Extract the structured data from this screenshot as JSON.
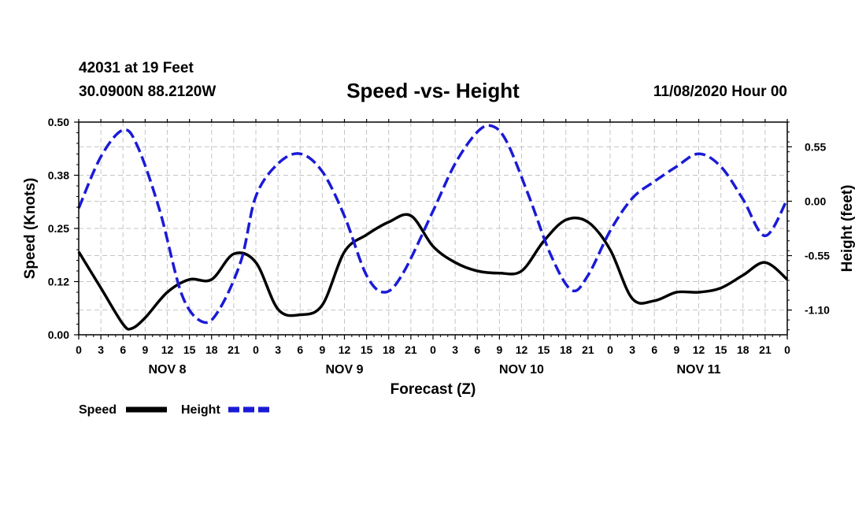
{
  "header": {
    "station": "42031 at 19 Feet",
    "coords": "30.0900N 88.2120W",
    "issued": "11/08/2020 Hour 00"
  },
  "chart_data": {
    "type": "line",
    "title": "Speed -vs- Height",
    "xlabel": "Forecast (Z)",
    "ylabel_left": "Speed (Knots)",
    "ylabel_right": "Height (feet)",
    "x_range_hours": [
      0,
      96
    ],
    "ylim_left": [
      0.0,
      0.5
    ],
    "ylim_right": [
      -1.35,
      0.8
    ],
    "left_ticks": [
      "0.50",
      "0.38",
      "0.25",
      "0.12",
      "0.00"
    ],
    "left_tick_values": [
      0.5,
      0.375,
      0.25,
      0.125,
      0.0
    ],
    "right_ticks": [
      "0.55",
      "0.00",
      "-0.55",
      "-1.10"
    ],
    "right_tick_values": [
      0.55,
      0.0,
      -0.55,
      -1.1
    ],
    "x_tick_labels": [
      "0",
      "3",
      "6",
      "9",
      "12",
      "15",
      "18",
      "21",
      "0",
      "3",
      "6",
      "9",
      "12",
      "15",
      "18",
      "21",
      "0",
      "3",
      "6",
      "9",
      "12",
      "15",
      "18",
      "21",
      "0",
      "3",
      "6",
      "9",
      "12",
      "15",
      "18",
      "21",
      "0"
    ],
    "day_labels": [
      {
        "label": "NOV 8",
        "center_hour": 12
      },
      {
        "label": "NOV 9",
        "center_hour": 36
      },
      {
        "label": "NOV 10",
        "center_hour": 60
      },
      {
        "label": "NOV 11",
        "center_hour": 84
      }
    ],
    "grid": true,
    "series": [
      {
        "name": "Speed",
        "axis": "left",
        "color": "#000000",
        "style": "solid",
        "points": [
          [
            0,
            0.195
          ],
          [
            3,
            0.11
          ],
          [
            6,
            0.025
          ],
          [
            7.2,
            0.015
          ],
          [
            9,
            0.04
          ],
          [
            12,
            0.1
          ],
          [
            15,
            0.13
          ],
          [
            18,
            0.13
          ],
          [
            21,
            0.19
          ],
          [
            24,
            0.17
          ],
          [
            27,
            0.06
          ],
          [
            30,
            0.047
          ],
          [
            33,
            0.07
          ],
          [
            36,
            0.195
          ],
          [
            39,
            0.235
          ],
          [
            42,
            0.265
          ],
          [
            45,
            0.28
          ],
          [
            48,
            0.208
          ],
          [
            51,
            0.17
          ],
          [
            54,
            0.15
          ],
          [
            57,
            0.145
          ],
          [
            60,
            0.15
          ],
          [
            63,
            0.22
          ],
          [
            66,
            0.27
          ],
          [
            69,
            0.265
          ],
          [
            72,
            0.2
          ],
          [
            75,
            0.085
          ],
          [
            78,
            0.08
          ],
          [
            81,
            0.1
          ],
          [
            84,
            0.1
          ],
          [
            87,
            0.11
          ],
          [
            90,
            0.14
          ],
          [
            93,
            0.17
          ],
          [
            96,
            0.13
          ]
        ]
      },
      {
        "name": "Height",
        "axis": "right",
        "color": "#1a1ad6",
        "style": "dashed",
        "points": [
          [
            0,
            -0.07
          ],
          [
            3,
            0.45
          ],
          [
            6,
            0.72
          ],
          [
            8,
            0.55
          ],
          [
            11,
            -0.1
          ],
          [
            14,
            -0.95
          ],
          [
            16.8,
            -1.22
          ],
          [
            19,
            -1.1
          ],
          [
            22,
            -0.6
          ],
          [
            24,
            0.05
          ],
          [
            27,
            0.38
          ],
          [
            30,
            0.48
          ],
          [
            33,
            0.3
          ],
          [
            36,
            -0.15
          ],
          [
            39,
            -0.75
          ],
          [
            41.5,
            -0.92
          ],
          [
            44,
            -0.72
          ],
          [
            48,
            -0.1
          ],
          [
            51,
            0.38
          ],
          [
            54,
            0.7
          ],
          [
            56,
            0.76
          ],
          [
            58,
            0.6
          ],
          [
            61,
            0.05
          ],
          [
            64,
            -0.55
          ],
          [
            66.8,
            -0.9
          ],
          [
            69,
            -0.75
          ],
          [
            72,
            -0.3
          ],
          [
            75,
            0.03
          ],
          [
            78,
            0.2
          ],
          [
            81,
            0.35
          ],
          [
            84,
            0.48
          ],
          [
            87,
            0.35
          ],
          [
            90,
            0.02
          ],
          [
            93,
            -0.35
          ],
          [
            96,
            0.02
          ]
        ]
      }
    ]
  },
  "legend": {
    "speed_label": "Speed",
    "height_label": "Height"
  }
}
